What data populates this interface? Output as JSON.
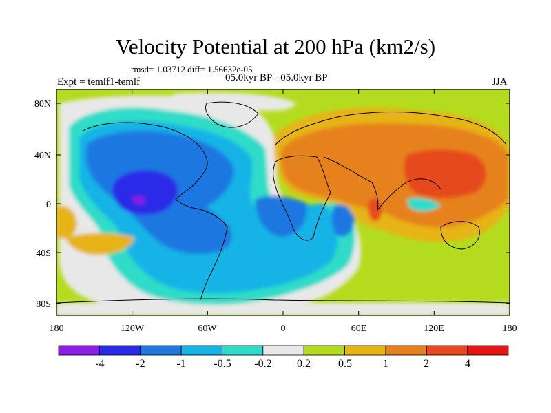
{
  "title": "Velocity Potential at 200 hPa (km2/s)",
  "stats": "rmsd= 1.03712 diff= 1.56632e-05",
  "experiment": "Expt = temlf1-temlf",
  "period": "05.0kyr BP - 05.0kyr BP",
  "season": "JJA",
  "x_ticks": [
    "180",
    "120W",
    "60W",
    "0",
    "60E",
    "120E",
    "180"
  ],
  "y_ticks": [
    "80N",
    "40N",
    "0",
    "40S",
    "80S"
  ],
  "colorbar": {
    "colors": [
      "#8e1ee6",
      "#2a2ae8",
      "#1e78e0",
      "#17b4e6",
      "#2edcc8",
      "#e8e8e8",
      "#b4dc1e",
      "#e6b414",
      "#e6821e",
      "#e64a1e",
      "#e61414"
    ],
    "labels": [
      "-4",
      "-2",
      "-1",
      "-0.5",
      "-0.2",
      "0.2",
      "0.5",
      "1",
      "2",
      "4"
    ]
  }
}
